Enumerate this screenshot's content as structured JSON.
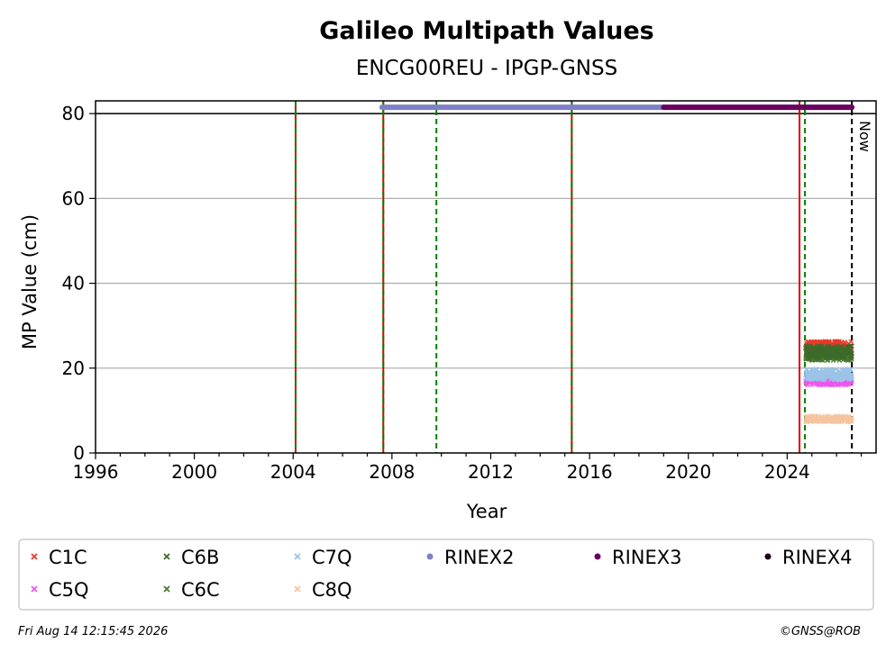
{
  "chart_data": {
    "type": "scatter",
    "title": "Galileo Multipath Values",
    "subtitle": "ENCG00REU - IPGP-GNSS",
    "xlabel": "Year",
    "ylabel": "MP Value (cm)",
    "xlim": [
      1996,
      2027.6
    ],
    "ylim": [
      0,
      83
    ],
    "xticks": [
      1996,
      2000,
      2004,
      2008,
      2012,
      2016,
      2020,
      2024
    ],
    "yticks": [
      0,
      20,
      40,
      60,
      80
    ],
    "grid": "y",
    "legend_position": "bottom",
    "now_label": "Now",
    "now_x": 2026.62,
    "series": [
      {
        "name": "C1C",
        "color": "#e8392b",
        "marker": "x",
        "x_range": [
          2024.75,
          2026.62
        ],
        "mean": 25.0,
        "spread": 1.4
      },
      {
        "name": "C5Q",
        "color": "#ee55ee",
        "marker": "x",
        "x_range": [
          2024.75,
          2026.62
        ],
        "mean": 17.0,
        "spread": 1.0
      },
      {
        "name": "C6B",
        "color": "#3d6b2a",
        "marker": "x",
        "x_range": [
          2024.75,
          2026.62
        ],
        "mean": 23.8,
        "spread": 1.5
      },
      {
        "name": "C6C",
        "color": "#4a7a30",
        "marker": "x",
        "x_range": [
          2024.75,
          2026.62
        ],
        "mean": 23.0,
        "spread": 1.2
      },
      {
        "name": "C7Q",
        "color": "#9cc3e8",
        "marker": "x",
        "x_range": [
          2024.75,
          2026.62
        ],
        "mean": 18.5,
        "spread": 1.3
      },
      {
        "name": "C8Q",
        "color": "#f5c4a0",
        "marker": "x",
        "x_range": [
          2024.75,
          2026.62
        ],
        "mean": 8.0,
        "spread": 0.7
      },
      {
        "name": "RINEX2",
        "color": "#8080c8",
        "marker": "dot",
        "bar": [
          2007.6,
          2019.0
        ],
        "y": 81.5
      },
      {
        "name": "RINEX3",
        "color": "#6a0060",
        "marker": "dot",
        "bar": [
          2019.0,
          2026.62
        ],
        "y": 81.5
      },
      {
        "name": "RINEX4",
        "color": "#1a0018",
        "marker": "dot"
      }
    ],
    "vlines": [
      {
        "x": 2004.1,
        "style": "red-green"
      },
      {
        "x": 2007.65,
        "style": "red-green"
      },
      {
        "x": 2009.8,
        "style": "green"
      },
      {
        "x": 2015.28,
        "style": "red-green"
      },
      {
        "x": 2024.5,
        "style": "red"
      },
      {
        "x": 2024.72,
        "style": "green"
      },
      {
        "x": 2026.62,
        "style": "black"
      }
    ],
    "legend_order": [
      "C1C",
      "C6B",
      "C7Q",
      "RINEX2",
      "RINEX3",
      "RINEX4",
      "C5Q",
      "C6C",
      "C8Q"
    ]
  },
  "footer": {
    "date": "Fri Aug 14 12:15:45 2026",
    "copyright": "©GNSS@ROB"
  }
}
